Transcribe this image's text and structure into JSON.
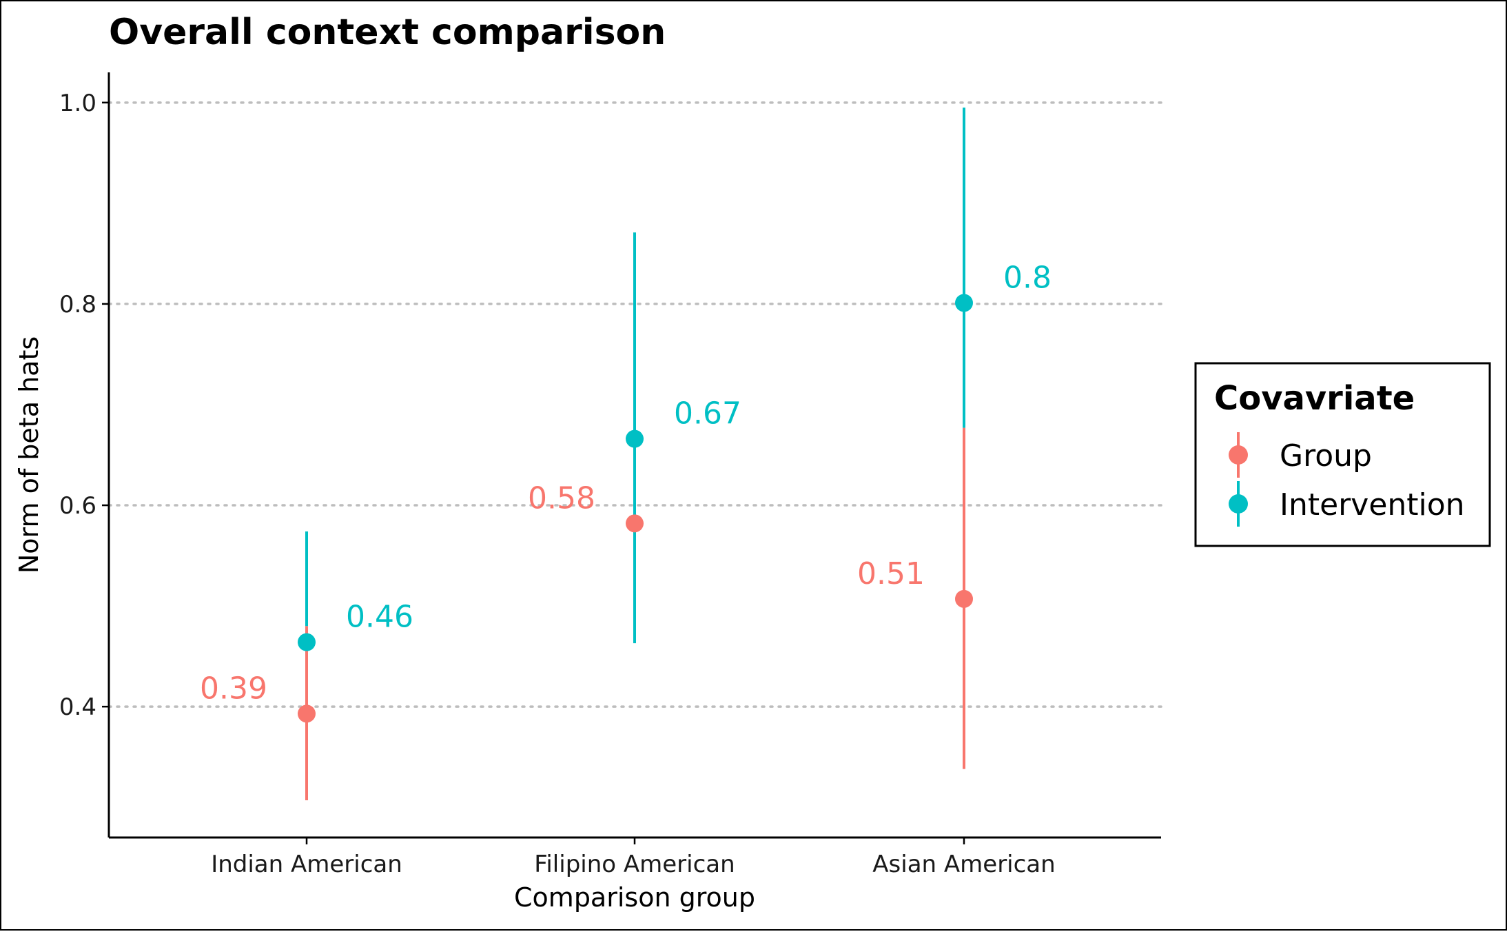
{
  "chart_data": {
    "type": "pointrange",
    "title": "Overall context comparison",
    "xlabel": "Comparison group",
    "ylabel": "Norm of beta hats",
    "categories": [
      "Indian American",
      "Filipino American",
      "Asian American"
    ],
    "y_ticks": [
      "0.4",
      "0.6",
      "0.8",
      "1.0"
    ],
    "ylim": [
      0.27,
      1.03
    ],
    "grid": "major y, dotted",
    "legend": {
      "title": "Covavriate",
      "position": "right"
    },
    "series": [
      {
        "name": "Group",
        "color": "#F8766D",
        "points": [
          {
            "category": "Indian American",
            "y": 0.393,
            "ymin": 0.307,
            "ymax": 0.48,
            "label": "0.39"
          },
          {
            "category": "Filipino American",
            "y": 0.582,
            "ymin": 0.475,
            "ymax": 0.69,
            "label": "0.58"
          },
          {
            "category": "Asian American",
            "y": 0.507,
            "ymin": 0.338,
            "ymax": 0.677,
            "label": "0.51"
          }
        ]
      },
      {
        "name": "Intervention",
        "color": "#00BFC4",
        "points": [
          {
            "category": "Indian American",
            "y": 0.464,
            "ymin": 0.48,
            "ymax": 0.574,
            "label": "0.46"
          },
          {
            "category": "Filipino American",
            "y": 0.666,
            "ymin": 0.463,
            "ymax": 0.871,
            "label": "0.67"
          },
          {
            "category": "Asian American",
            "y": 0.801,
            "ymin": 0.677,
            "ymax": 0.995,
            "label": "0.8"
          }
        ]
      }
    ]
  }
}
